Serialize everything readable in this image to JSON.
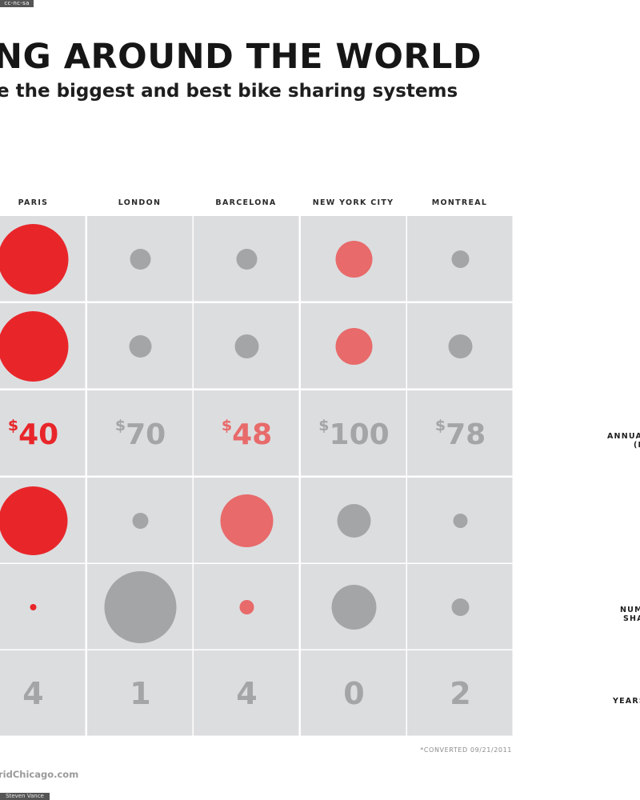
{
  "license_tag": "cc-nc-sa",
  "header": {
    "title": "NG AROUND THE WORLD",
    "subtitle": "e the biggest and best bike sharing systems"
  },
  "row_labels": [
    {
      "main": "ANNUA",
      "note": "(I"
    },
    {
      "main": "NUM",
      "note": "SHA"
    },
    {
      "main": "YEARS",
      "note": ""
    }
  ],
  "footnote": "*CONVERTED 09/21/2011",
  "footer": {
    "website": "ridChicago.com",
    "credit": "Steven Vance"
  },
  "colors": {
    "red": "#e8262a",
    "light_red": "#e86a6a",
    "gray": "#a4a5a7",
    "cell_bg": "#dcdddf",
    "cell_border": "#f4f4f4"
  },
  "chart_data": {
    "type": "table",
    "cities": [
      "PARIS",
      "LONDON",
      "BARCELONA",
      "NEW YORK CITY",
      "MONTREAL"
    ],
    "rows": [
      {
        "kind": "bubble",
        "radius": [
          44,
          13,
          13,
          23,
          11
        ],
        "color": [
          "red",
          "gray",
          "gray",
          "light_red",
          "gray"
        ]
      },
      {
        "kind": "bubble",
        "radius": [
          44,
          14,
          15,
          23,
          15
        ],
        "color": [
          "red",
          "gray",
          "gray",
          "light_red",
          "gray"
        ]
      },
      {
        "kind": "price",
        "currency": "$",
        "values": [
          40,
          70,
          48,
          100,
          78
        ],
        "display": [
          "40",
          "70",
          "48",
          "100",
          "78"
        ],
        "color": [
          "red",
          "gray",
          "light_red",
          "gray",
          "gray"
        ]
      },
      {
        "kind": "bubble",
        "radius": [
          43,
          10,
          33,
          21,
          9
        ],
        "color": [
          "red",
          "gray",
          "light_red",
          "gray",
          "gray"
        ]
      },
      {
        "kind": "bubble",
        "radius": [
          4,
          45,
          9,
          28,
          11
        ],
        "color": [
          "red",
          "gray",
          "light_red",
          "gray",
          "gray"
        ]
      },
      {
        "kind": "number",
        "values": [
          4,
          1,
          4,
          0,
          2
        ],
        "display": [
          "4",
          "1",
          "4",
          "0",
          "2"
        ],
        "color": [
          "gray",
          "gray",
          "gray",
          "gray",
          "gray"
        ]
      }
    ]
  }
}
